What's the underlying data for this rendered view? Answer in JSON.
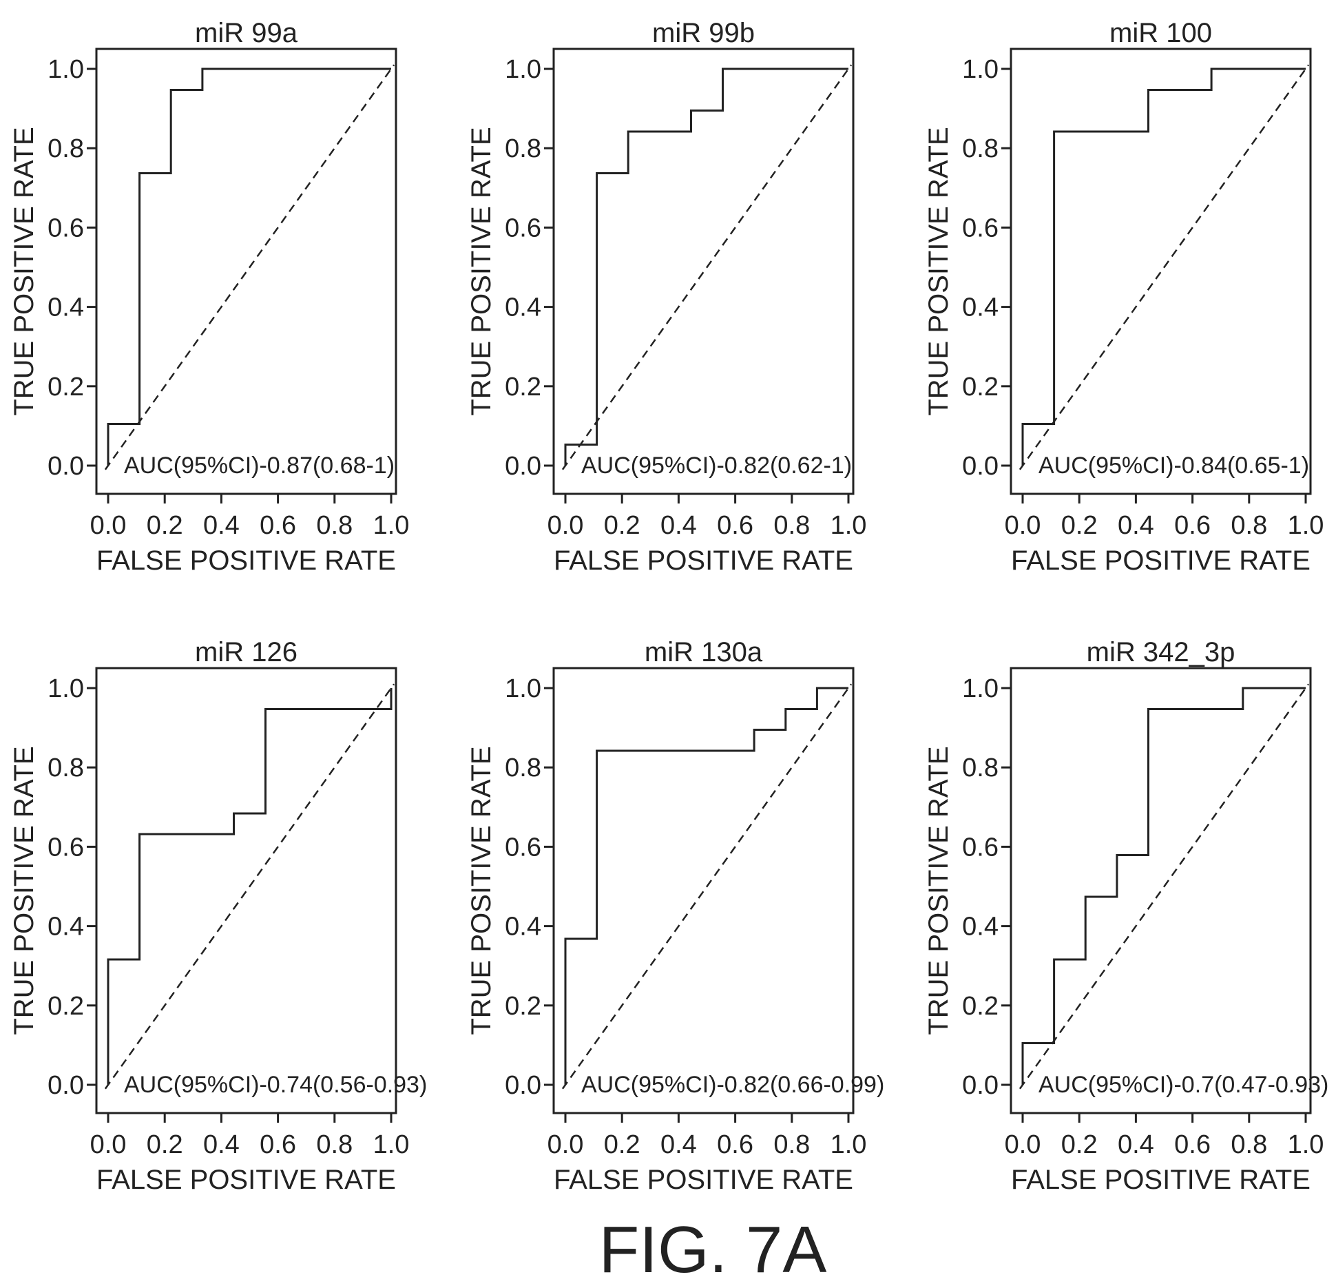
{
  "figure_caption": "FIG. 7A",
  "chart_data": [
    {
      "type": "line",
      "title": "miR 99a",
      "xlabel": "FALSE POSITIVE RATE",
      "ylabel": "TRUE POSITIVE RATE",
      "xlim": [
        0,
        1
      ],
      "ylim": [
        0,
        1
      ],
      "ticks": [
        "0.0",
        "0.2",
        "0.4",
        "0.6",
        "0.8",
        "1.0"
      ],
      "annotation": "AUC(95%CI)-0.87(0.68-1)",
      "reference_line": "diagonal dashed",
      "roc": {
        "x": [
          0,
          0,
          0.111,
          0.111,
          0.222,
          0.222,
          0.333,
          0.333,
          1
        ],
        "y": [
          0,
          0.105,
          0.105,
          0.737,
          0.737,
          0.947,
          0.947,
          1,
          1
        ]
      }
    },
    {
      "type": "line",
      "title": "miR 99b",
      "xlabel": "FALSE POSITIVE RATE",
      "ylabel": "TRUE POSITIVE RATE",
      "xlim": [
        0,
        1
      ],
      "ylim": [
        0,
        1
      ],
      "ticks": [
        "0.0",
        "0.2",
        "0.4",
        "0.6",
        "0.8",
        "1.0"
      ],
      "annotation": "AUC(95%CI)-0.82(0.62-1)",
      "reference_line": "diagonal dashed",
      "roc": {
        "x": [
          0,
          0,
          0.111,
          0.111,
          0.222,
          0.222,
          0.444,
          0.444,
          0.556,
          0.556,
          1
        ],
        "y": [
          0,
          0.053,
          0.053,
          0.737,
          0.737,
          0.842,
          0.842,
          0.895,
          0.895,
          1,
          1
        ]
      }
    },
    {
      "type": "line",
      "title": "miR 100",
      "xlabel": "FALSE POSITIVE RATE",
      "ylabel": "TRUE POSITIVE RATE",
      "xlim": [
        0,
        1
      ],
      "ylim": [
        0,
        1
      ],
      "ticks": [
        "0.0",
        "0.2",
        "0.4",
        "0.6",
        "0.8",
        "1.0"
      ],
      "annotation": "AUC(95%CI)-0.84(0.65-1)",
      "reference_line": "diagonal dashed",
      "roc": {
        "x": [
          0,
          0,
          0.111,
          0.111,
          0.444,
          0.444,
          0.667,
          0.667,
          1
        ],
        "y": [
          0,
          0.105,
          0.105,
          0.842,
          0.842,
          0.947,
          0.947,
          1,
          1
        ]
      }
    },
    {
      "type": "line",
      "title": "miR 126",
      "xlabel": "FALSE POSITIVE RATE",
      "ylabel": "TRUE POSITIVE RATE",
      "xlim": [
        0,
        1
      ],
      "ylim": [
        0,
        1
      ],
      "ticks": [
        "0.0",
        "0.2",
        "0.4",
        "0.6",
        "0.8",
        "1.0"
      ],
      "annotation": "AUC(95%CI)-0.74(0.56-0.93)",
      "reference_line": "diagonal dashed",
      "roc": {
        "x": [
          0,
          0,
          0.111,
          0.111,
          0.444,
          0.444,
          0.556,
          0.556,
          1,
          1
        ],
        "y": [
          0,
          0.316,
          0.316,
          0.632,
          0.632,
          0.684,
          0.684,
          0.947,
          0.947,
          1
        ]
      }
    },
    {
      "type": "line",
      "title": "miR 130a",
      "xlabel": "FALSE POSITIVE RATE",
      "ylabel": "TRUE POSITIVE RATE",
      "xlim": [
        0,
        1
      ],
      "ylim": [
        0,
        1
      ],
      "ticks": [
        "0.0",
        "0.2",
        "0.4",
        "0.6",
        "0.8",
        "1.0"
      ],
      "annotation": "AUC(95%CI)-0.82(0.66-0.99)",
      "reference_line": "diagonal dashed",
      "roc": {
        "x": [
          0,
          0,
          0.111,
          0.111,
          0.667,
          0.667,
          0.778,
          0.778,
          0.889,
          0.889,
          1
        ],
        "y": [
          0,
          0.368,
          0.368,
          0.842,
          0.842,
          0.895,
          0.895,
          0.947,
          0.947,
          1,
          1
        ]
      }
    },
    {
      "type": "line",
      "title": "miR 342_3p",
      "xlabel": "FALSE POSITIVE RATE",
      "ylabel": "TRUE POSITIVE RATE",
      "xlim": [
        0,
        1
      ],
      "ylim": [
        0,
        1
      ],
      "ticks": [
        "0.0",
        "0.2",
        "0.4",
        "0.6",
        "0.8",
        "1.0"
      ],
      "annotation": "AUC(95%CI)-0.7(0.47-0.93)",
      "reference_line": "diagonal dashed",
      "roc": {
        "x": [
          0,
          0,
          0.111,
          0.111,
          0.222,
          0.222,
          0.333,
          0.333,
          0.444,
          0.444,
          0.778,
          0.778,
          1
        ],
        "y": [
          0,
          0.105,
          0.105,
          0.316,
          0.316,
          0.474,
          0.474,
          0.579,
          0.579,
          0.947,
          0.947,
          1,
          1
        ]
      }
    }
  ]
}
